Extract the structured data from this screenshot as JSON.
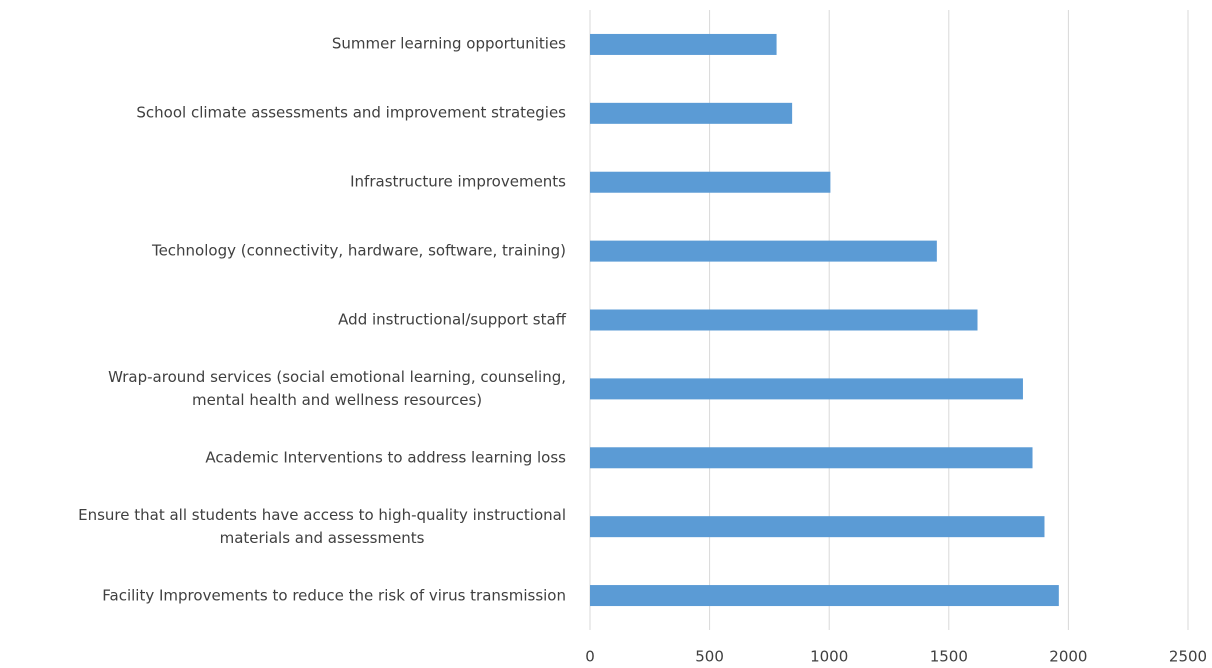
{
  "chart_data": {
    "type": "barh",
    "categories": [
      "Summer learning opportunities",
      "School climate assessments and improvement strategies",
      "Infrastructure improvements",
      "Technology (connectivity, hardware, software, training)",
      "Add instructional/support staff",
      "Wrap-around services (social emotional learning, counseling,\nmental health and wellness resources)",
      "Academic Interventions to address learning loss",
      "Ensure that all students have access to high-quality instructional\nmaterials and assessments",
      "Facility Improvements to reduce the risk of virus transmission"
    ],
    "values": [
      780,
      845,
      1005,
      1450,
      1620,
      1810,
      1850,
      1900,
      1960
    ],
    "color": "#5b9bd5",
    "xlim": [
      0,
      2500
    ],
    "xticks": [
      0,
      500,
      1000,
      1500,
      2000,
      2500
    ],
    "grid": true
  }
}
